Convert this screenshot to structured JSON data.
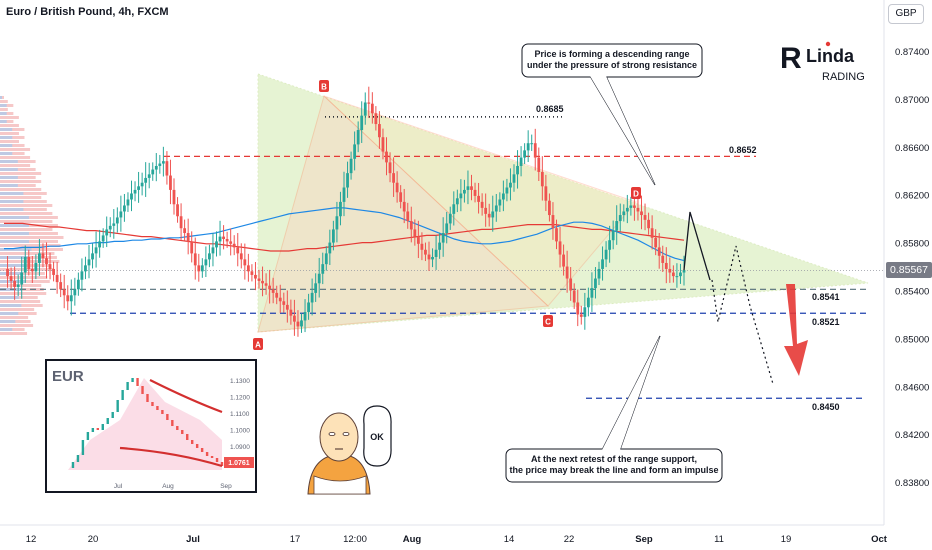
{
  "header": {
    "title": "Euro / British Pound, 4h, FXCM",
    "currency": "GBP",
    "last_price": "0.85567"
  },
  "axes": {
    "y_ticks": [
      "0.87400",
      "0.87000",
      "0.86600",
      "0.86200",
      "0.85800",
      "0.85400",
      "0.85000",
      "0.84600",
      "0.84200",
      "0.83800"
    ],
    "x_ticks": [
      "12",
      "20",
      "Jul",
      "17",
      "12:00",
      "Aug",
      "14",
      "22",
      "Sep",
      "11",
      "19",
      "Oct"
    ]
  },
  "levels": [
    {
      "label": "0.8685",
      "value": 0.8685,
      "style": "dotted",
      "color": "#131722"
    },
    {
      "label": "0.8652",
      "value": 0.8652,
      "style": "dashed",
      "color": "#e53935"
    },
    {
      "label": "0.8541",
      "value": 0.8541,
      "style": "dashed",
      "color": "#546e7a"
    },
    {
      "label": "0.8521",
      "value": 0.8521,
      "style": "dashed",
      "color": "#1e40af"
    },
    {
      "label": "0.8450",
      "value": 0.845,
      "style": "dashed",
      "color": "#1e40af"
    }
  ],
  "points": [
    {
      "label": "A",
      "value": 0.8509
    },
    {
      "label": "B",
      "value": 0.8703
    },
    {
      "label": "C",
      "value": 0.8521
    },
    {
      "label": "D",
      "value": 0.8612
    }
  ],
  "annotations": {
    "top": "Price is forming a descending range\nunder the pressure of strong resistance",
    "bottom": "At the next retest of the range support,\nthe price may break the line and form an impulse",
    "bubble": "OK"
  },
  "logo": {
    "line1": "RLinda",
    "line2": "TRADING"
  },
  "inset": {
    "title": "EUR",
    "y_ticks": [
      "1.1300",
      "1.1200",
      "1.1100",
      "1.1000",
      "1.0900",
      "1.0800"
    ],
    "x_ticks": [
      "Jul",
      "Aug",
      "Sep"
    ],
    "price_tag": "1.0761"
  },
  "colors": {
    "bull": "#26a69a",
    "bear": "#ef5350",
    "candle_bull": "#26a69a",
    "candle_bear": "#ef5350",
    "triangle": "#c8e6a0",
    "ma_red": "#e53935",
    "ma_blue": "#1e88e5"
  },
  "chart_data": {
    "type": "candlestick",
    "title": "Euro / British Pound, 4h, FXCM",
    "ylim": [
      0.8365,
      0.8755
    ],
    "y_unit": "GBP",
    "last_price": 0.85567,
    "x_ticks": [
      "12",
      "20",
      "Jul",
      "17",
      "12:00",
      "Aug",
      "14",
      "22",
      "Sep",
      "11",
      "19",
      "Oct"
    ],
    "close_path": [
      0.8558,
      0.8552,
      0.8548,
      0.8543,
      0.8545,
      0.8555,
      0.8568,
      0.8558,
      0.8556,
      0.8563,
      0.8571,
      0.8567,
      0.8562,
      0.8558,
      0.8553,
      0.8547,
      0.8541,
      0.8536,
      0.8531,
      0.8536,
      0.8541,
      0.8549,
      0.8556,
      0.8561,
      0.8566,
      0.8571,
      0.8576,
      0.8581,
      0.8586,
      0.8591,
      0.8594,
      0.8596,
      0.8601,
      0.8606,
      0.8611,
      0.8616,
      0.8621,
      0.8624,
      0.8627,
      0.863,
      0.8634,
      0.8637,
      0.8641,
      0.8644,
      0.8646,
      0.8648,
      0.8636,
      0.8624,
      0.8612,
      0.8602,
      0.8592,
      0.8588,
      0.8581,
      0.8571,
      0.8561,
      0.8556,
      0.8561,
      0.8566,
      0.8571,
      0.8576,
      0.8581,
      0.8585,
      0.8583,
      0.8581,
      0.8579,
      0.8576,
      0.8571,
      0.8566,
      0.8561,
      0.8556,
      0.8553,
      0.855,
      0.8548,
      0.8546,
      0.8544,
      0.8541,
      0.8538,
      0.8534,
      0.8531,
      0.8528,
      0.8524,
      0.8519,
      0.8514,
      0.851,
      0.8515,
      0.8522,
      0.853,
      0.8538,
      0.8546,
      0.8554,
      0.8562,
      0.8571,
      0.858,
      0.8591,
      0.8602,
      0.8614,
      0.8626,
      0.8638,
      0.865,
      0.8662,
      0.8674,
      0.8686,
      0.8697,
      0.8696,
      0.8688,
      0.8679,
      0.8668,
      0.8656,
      0.8647,
      0.8638,
      0.863,
      0.8622,
      0.8614,
      0.8606,
      0.8598,
      0.8591,
      0.8585,
      0.8579,
      0.8574,
      0.857,
      0.8566,
      0.8568,
      0.8574,
      0.858,
      0.8588,
      0.8596,
      0.8604,
      0.8612,
      0.8617,
      0.8621,
      0.8624,
      0.8627,
      0.8624,
      0.8619,
      0.8614,
      0.8609,
      0.8604,
      0.8601,
      0.8606,
      0.8611,
      0.8616,
      0.8621,
      0.8626,
      0.863,
      0.8637,
      0.8644,
      0.8651,
      0.8657,
      0.8663,
      0.8663,
      0.8651,
      0.8639,
      0.8627,
      0.8615,
      0.8603,
      0.8592,
      0.8581,
      0.857,
      0.856,
      0.855,
      0.854,
      0.853,
      0.852,
      0.8518,
      0.8526,
      0.8534,
      0.8542,
      0.855,
      0.8558,
      0.8566,
      0.8574,
      0.8582,
      0.859,
      0.8598,
      0.8603,
      0.8606,
      0.8609,
      0.8611,
      0.8609,
      0.8606,
      0.8603,
      0.8599,
      0.8592,
      0.8584,
      0.8576,
      0.8569,
      0.8563,
      0.8558,
      0.8555,
      0.8552,
      0.8552,
      0.8555,
      0.8557
    ],
    "ma_red": [
      0.8596,
      0.8596,
      0.8596,
      0.8595,
      0.8594,
      0.8593,
      0.8593,
      0.8592,
      0.8591,
      0.859,
      0.859,
      0.8589,
      0.8588,
      0.8587,
      0.8586,
      0.8585,
      0.8585,
      0.8584,
      0.8583,
      0.8582,
      0.8581,
      0.858,
      0.8579,
      0.8579,
      0.8578,
      0.8577,
      0.8576,
      0.8575,
      0.8574,
      0.8573,
      0.8573,
      0.8573,
      0.8574,
      0.8575,
      0.8575,
      0.8576,
      0.8577,
      0.8578,
      0.8579,
      0.858,
      0.858,
      0.8581,
      0.8582,
      0.8583,
      0.8584,
      0.8585,
      0.8586,
      0.8586,
      0.8587,
      0.8588,
      0.8589,
      0.859,
      0.8591,
      0.8591,
      0.8592,
      0.8593,
      0.8594,
      0.8595,
      0.8595,
      0.8595,
      0.8595,
      0.8594,
      0.8593,
      0.8592,
      0.8591,
      0.8591,
      0.859,
      0.8589,
      0.8588,
      0.8587,
      0.8586,
      0.8585,
      0.8584,
      0.8583,
      0.8582
    ],
    "ma_blue": [
      0.8575,
      0.8575,
      0.8576,
      0.8576,
      0.8576,
      0.8577,
      0.8577,
      0.8578,
      0.8579,
      0.8579,
      0.858,
      0.858,
      0.8581,
      0.8581,
      0.8582,
      0.8582,
      0.8583,
      0.8583,
      0.8584,
      0.8584,
      0.8585,
      0.8586,
      0.8587,
      0.8588,
      0.859,
      0.8592,
      0.8594,
      0.8596,
      0.8598,
      0.86,
      0.8602,
      0.8604,
      0.8605,
      0.8606,
      0.8607,
      0.8608,
      0.8609,
      0.8609,
      0.8608,
      0.8607,
      0.8606,
      0.8605,
      0.8603,
      0.8601,
      0.8598,
      0.8595,
      0.8592,
      0.8589,
      0.8586,
      0.8583,
      0.8581,
      0.858,
      0.8579,
      0.8579,
      0.858,
      0.8581,
      0.8583,
      0.8585,
      0.8587,
      0.859,
      0.8593,
      0.8595,
      0.8597,
      0.8597,
      0.8596,
      0.8594,
      0.8591,
      0.8588,
      0.8585,
      0.8582,
      0.8578,
      0.8574,
      0.857,
      0.8567,
      0.8565
    ],
    "projection": [
      0.8557,
      0.8597,
      0.8539,
      0.8512,
      0.8583,
      0.8559,
      0.8473
    ]
  }
}
